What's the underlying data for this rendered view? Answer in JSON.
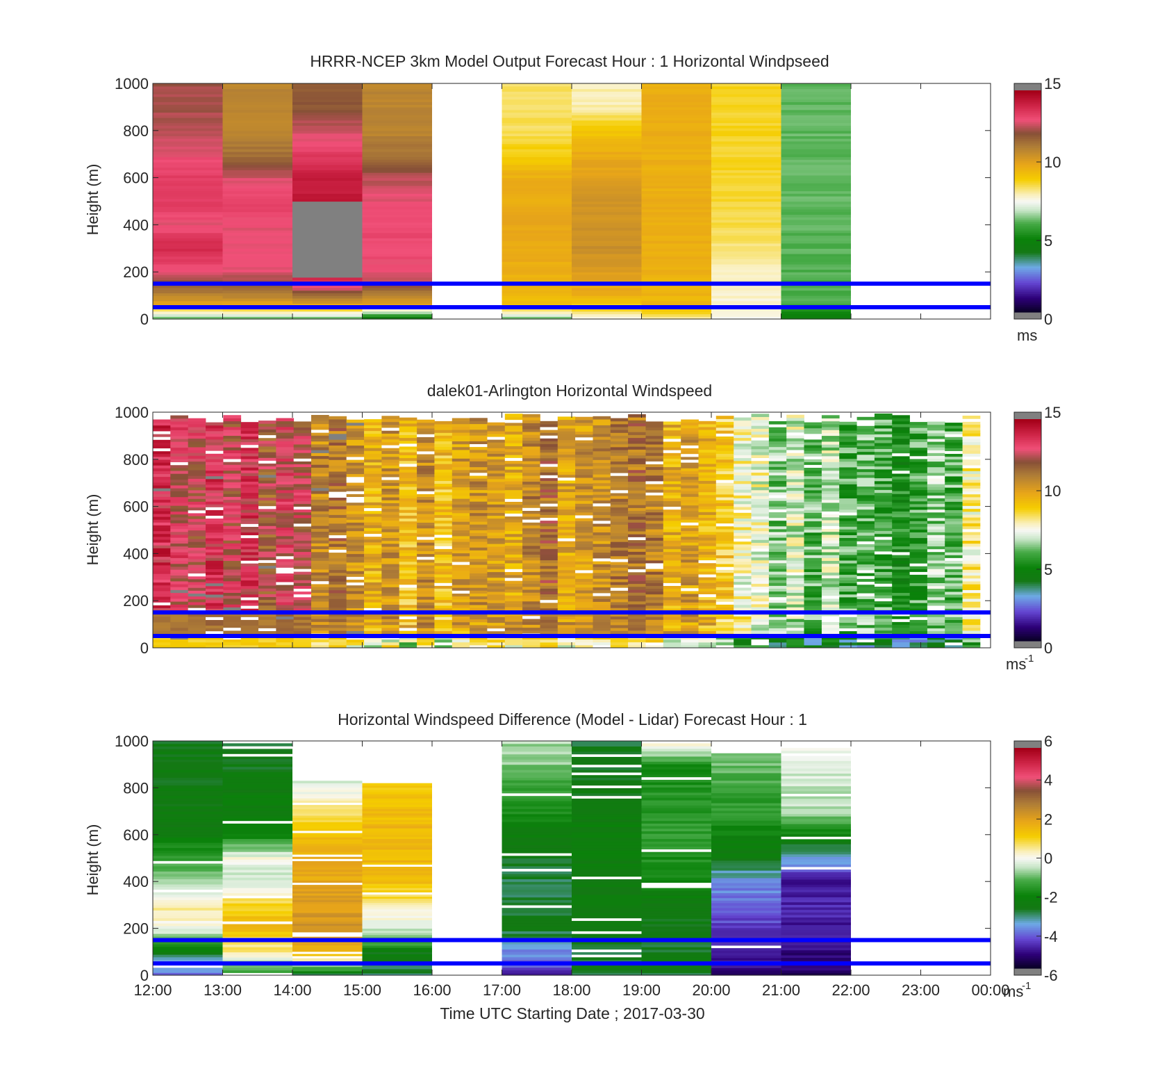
{
  "figure": {
    "xlabel": "Time UTC  Starting Date ; 2017-03-30",
    "xticks": [
      "12:00",
      "13:00",
      "14:00",
      "15:00",
      "16:00",
      "17:00",
      "18:00",
      "19:00",
      "20:00",
      "21:00",
      "22:00",
      "23:00",
      "00:00"
    ],
    "ylabel": "Height (m)",
    "yticks": [
      "0",
      "200",
      "400",
      "600",
      "800",
      "1000"
    ],
    "reference_lines_m": [
      50,
      150
    ],
    "reference_line_color": "#0000ff",
    "missing_color": "#808080"
  },
  "chart_data": [
    {
      "type": "heatmap",
      "title": "HRRR-NCEP 3km Model Output   Forecast Hour : 1 Horizontal Windpseed",
      "xlabel": "",
      "ylabel": "Height (m)",
      "ylim": [
        0,
        1000
      ],
      "colorbar": {
        "min": 0,
        "max": 15,
        "ticks": [
          "0",
          "5",
          "10",
          "15"
        ],
        "unit": "ms"
      },
      "columns": [
        {
          "hour": "12:00",
          "speed_by_height": [
            [
              0,
              6
            ],
            [
              30,
              8
            ],
            [
              60,
              10
            ],
            [
              100,
              11
            ],
            [
              150,
              12
            ],
            [
              200,
              13
            ],
            [
              300,
              14
            ],
            [
              400,
              13
            ],
            [
              500,
              13.5
            ],
            [
              600,
              13.5
            ],
            [
              700,
              13
            ],
            [
              800,
              12.6
            ],
            [
              900,
              12.4
            ],
            [
              1000,
              12.4
            ]
          ]
        },
        {
          "hour": "13:00",
          "speed_by_height": [
            [
              0,
              6
            ],
            [
              30,
              8
            ],
            [
              60,
              10
            ],
            [
              100,
              11
            ],
            [
              150,
              12
            ],
            [
              200,
              13
            ],
            [
              300,
              13
            ],
            [
              400,
              13
            ],
            [
              500,
              13.5
            ],
            [
              600,
              12.8
            ],
            [
              700,
              11.5
            ],
            [
              800,
              11
            ],
            [
              900,
              11
            ],
            [
              1000,
              11
            ]
          ]
        },
        {
          "hour": "14:00",
          "speed_by_height": [
            [
              0,
              6
            ],
            [
              30,
              8
            ],
            [
              60,
              10
            ],
            [
              100,
              11.5
            ],
            [
              150,
              13.5
            ],
            [
              180,
              14.3
            ],
            [
              200,
              null
            ],
            [
              450,
              null
            ],
            [
              500,
              14.4
            ],
            [
              600,
              14.2
            ],
            [
              700,
              13.5
            ],
            [
              800,
              12.8
            ],
            [
              900,
              12
            ],
            [
              1000,
              12
            ]
          ]
        },
        {
          "hour": "15:00",
          "speed_by_height": [
            [
              0,
              4
            ],
            [
              30,
              7
            ],
            [
              60,
              10
            ],
            [
              100,
              11
            ],
            [
              150,
              12.5
            ],
            [
              200,
              13
            ],
            [
              300,
              13.2
            ],
            [
              400,
              13.2
            ],
            [
              500,
              13
            ],
            [
              600,
              12.6
            ],
            [
              700,
              11.5
            ],
            [
              800,
              11
            ],
            [
              900,
              11
            ],
            [
              1000,
              11
            ]
          ]
        },
        {
          "hour": "17:00",
          "speed_by_height": [
            [
              0,
              6
            ],
            [
              30,
              8
            ],
            [
              60,
              9.3
            ],
            [
              100,
              9.5
            ],
            [
              200,
              9.8
            ],
            [
              400,
              10
            ],
            [
              600,
              9.8
            ],
            [
              700,
              9
            ],
            [
              800,
              8.5
            ],
            [
              900,
              8.5
            ],
            [
              1000,
              8.5
            ]
          ]
        },
        {
          "hour": "18:00",
          "speed_by_height": [
            [
              0,
              7.5
            ],
            [
              30,
              8.5
            ],
            [
              60,
              9
            ],
            [
              100,
              9.8
            ],
            [
              300,
              10.7
            ],
            [
              500,
              10.5
            ],
            [
              700,
              9.9
            ],
            [
              800,
              9.2
            ],
            [
              900,
              8
            ],
            [
              1000,
              8
            ]
          ]
        },
        {
          "hour": "19:00",
          "speed_by_height": [
            [
              0,
              8
            ],
            [
              30,
              9
            ],
            [
              60,
              9.6
            ],
            [
              300,
              9.8
            ],
            [
              600,
              9.8
            ],
            [
              900,
              9.8
            ],
            [
              1000,
              9.8
            ]
          ]
        },
        {
          "hour": "20:00",
          "speed_by_height": [
            [
              0,
              7.5
            ],
            [
              60,
              7.8
            ],
            [
              200,
              8
            ],
            [
              300,
              8.3
            ],
            [
              400,
              8.6
            ],
            [
              600,
              8.8
            ],
            [
              800,
              8.8
            ],
            [
              1000,
              8.8
            ]
          ]
        },
        {
          "hour": "21:00",
          "speed_by_height": [
            [
              0,
              4.5
            ],
            [
              60,
              6
            ],
            [
              300,
              6.1
            ],
            [
              600,
              6.2
            ],
            [
              800,
              6.2
            ],
            [
              1000,
              6.2
            ]
          ]
        }
      ]
    },
    {
      "type": "heatmap",
      "title": "dalek01-Arlington  Horizontal Windspeed",
      "xlabel": "",
      "ylabel": "Height (m)",
      "ylim": [
        0,
        1000
      ],
      "colorbar": {
        "min": 0,
        "max": 15,
        "ticks": [
          "0",
          "5",
          "10",
          "15"
        ],
        "unit": "ms",
        "unit_exp": "-1"
      },
      "time_profile": [
        [
          12,
          13.5
        ],
        [
          13,
          13.2
        ],
        [
          14,
          12.3
        ],
        [
          15,
          10.3
        ],
        [
          16,
          10
        ],
        [
          17,
          10.8
        ],
        [
          18,
          10.8
        ],
        [
          19,
          10.8
        ],
        [
          20,
          9.5
        ],
        [
          20.5,
          7.5
        ],
        [
          21,
          7
        ],
        [
          22,
          6
        ],
        [
          23,
          5.5
        ],
        [
          24,
          8
        ]
      ]
    },
    {
      "type": "heatmap",
      "title": "Horizontal Windspeed Difference (Model - Lidar) Forecast Hour : 1",
      "xlabel": "Time UTC  Starting Date ; 2017-03-30",
      "ylabel": "Height (m)",
      "ylim": [
        0,
        1000
      ],
      "colorbar": {
        "min": -6,
        "max": 6,
        "ticks": [
          "-6",
          "-4",
          "-2",
          "0",
          "2",
          "4",
          "6"
        ],
        "unit": "ms",
        "unit_exp": "-1"
      },
      "columns": [
        {
          "hour": "12:00",
          "top": 1000,
          "diff_by_height": [
            [
              0,
              -4
            ],
            [
              60,
              -3.5
            ],
            [
              100,
              -2.5
            ],
            [
              150,
              -1
            ],
            [
              200,
              0
            ],
            [
              300,
              0.5
            ],
            [
              400,
              -0.8
            ],
            [
              500,
              -1.5
            ],
            [
              600,
              -2.4
            ],
            [
              800,
              -2.6
            ],
            [
              1000,
              -2.6
            ]
          ]
        },
        {
          "hour": "13:00",
          "top": 990,
          "diff_by_height": [
            [
              0,
              -1.5
            ],
            [
              100,
              0.5
            ],
            [
              200,
              1.5
            ],
            [
              300,
              1.2
            ],
            [
              400,
              -0.5
            ],
            [
              500,
              0
            ],
            [
              600,
              -2
            ],
            [
              800,
              -2.5
            ],
            [
              990,
              -2.8
            ]
          ]
        },
        {
          "hour": "14:00",
          "top": 830,
          "diff_by_height": [
            [
              0,
              -3
            ],
            [
              60,
              0.5
            ],
            [
              100,
              1.5
            ],
            [
              200,
              2.5
            ],
            [
              300,
              2.2
            ],
            [
              400,
              2
            ],
            [
              500,
              1.8
            ],
            [
              600,
              1.5
            ],
            [
              700,
              0.8
            ],
            [
              830,
              -0.5
            ]
          ]
        },
        {
          "hour": "15:00",
          "top": 820,
          "diff_by_height": [
            [
              0,
              -3
            ],
            [
              100,
              -2.5
            ],
            [
              150,
              -1
            ],
            [
              200,
              -0.3
            ],
            [
              300,
              0.5
            ],
            [
              400,
              1.5
            ],
            [
              600,
              1.7
            ],
            [
              800,
              1.3
            ],
            [
              820,
              1
            ]
          ]
        },
        {
          "hour": "17:00",
          "top": 1000,
          "diff_by_height": [
            [
              0,
              -4.8
            ],
            [
              100,
              -3.8
            ],
            [
              200,
              -2.8
            ],
            [
              400,
              -2.9
            ],
            [
              600,
              -2.4
            ],
            [
              800,
              -1.4
            ],
            [
              900,
              -0.8
            ],
            [
              1000,
              -0.6
            ]
          ]
        },
        {
          "hour": "18:00",
          "top": 1000,
          "diff_by_height": [
            [
              0,
              -2.8
            ],
            [
              200,
              -2.7
            ],
            [
              400,
              -2.5
            ],
            [
              600,
              -2.3
            ],
            [
              800,
              -2.6
            ],
            [
              1000,
              -2.8
            ]
          ]
        },
        {
          "hour": "19:00",
          "top": 990,
          "diff_by_height": [
            [
              0,
              -2.8
            ],
            [
              300,
              -2.6
            ],
            [
              400,
              -2
            ],
            [
              600,
              -1.5
            ],
            [
              900,
              -1.8
            ],
            [
              990,
              0.5
            ]
          ]
        },
        {
          "hour": "20:00",
          "top": 960,
          "diff_by_height": [
            [
              0,
              -5.3
            ],
            [
              100,
              -4.8
            ],
            [
              200,
              -4.5
            ],
            [
              300,
              -4.2
            ],
            [
              400,
              -3.7
            ],
            [
              500,
              -2.6
            ],
            [
              700,
              -1.6
            ],
            [
              960,
              -0.8
            ]
          ]
        },
        {
          "hour": "21:00",
          "top": 970,
          "diff_by_height": [
            [
              0,
              -5.5
            ],
            [
              100,
              -5.2
            ],
            [
              300,
              -4.8
            ],
            [
              400,
              -5
            ],
            [
              700,
              -0.6
            ],
            [
              970,
              -0.1
            ]
          ]
        }
      ]
    }
  ]
}
